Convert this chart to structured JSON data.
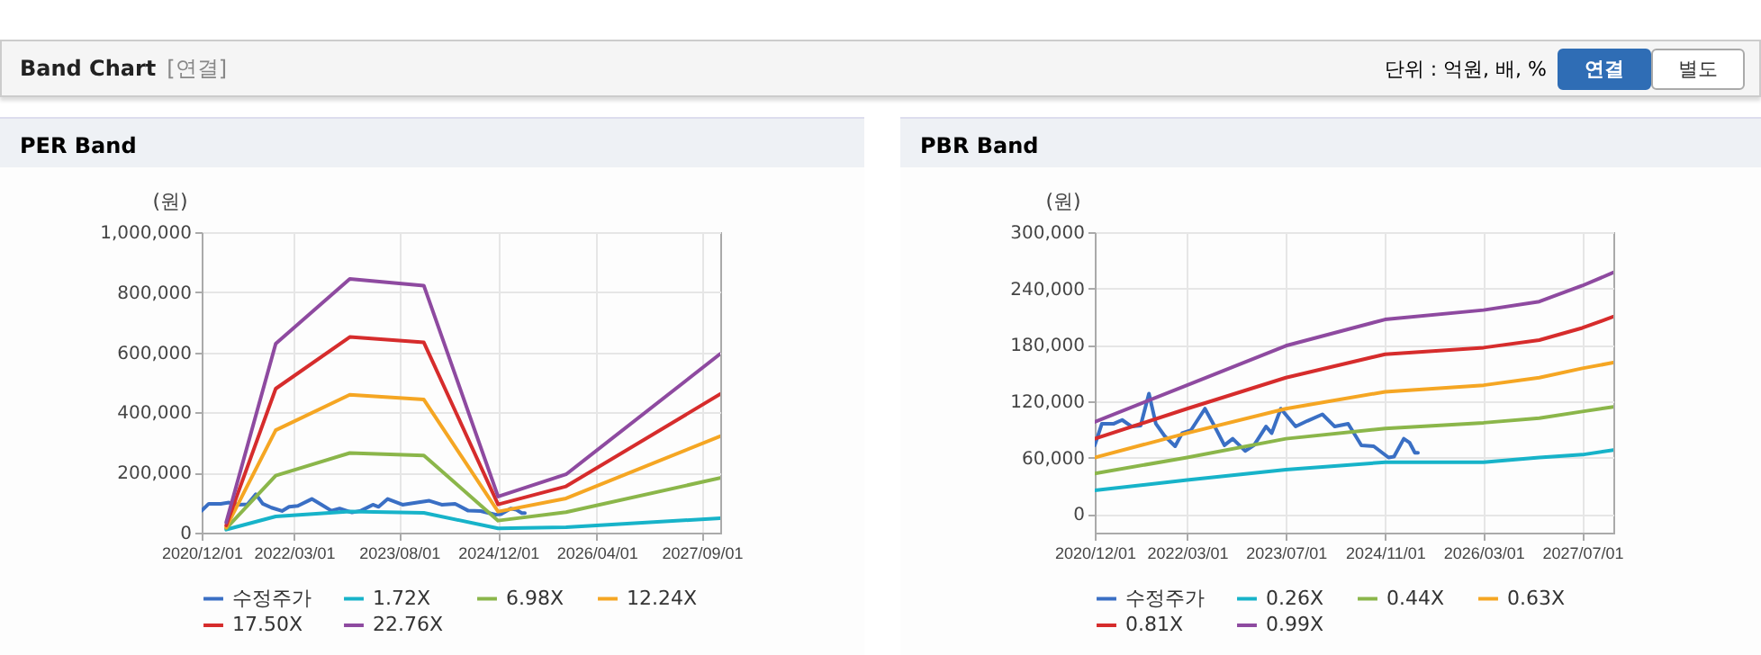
{
  "chart_data": [
    {
      "type": "other",
      "title": "Band Chart",
      "annotations": [
        "[연결]",
        "단위 : 억원, 배, %",
        "연결",
        "별도"
      ]
    },
    {
      "type": "line",
      "title": "PER Band",
      "ylabel": "(원)",
      "xlim": [
        "2020-12-01",
        "2027-12-01"
      ],
      "xticks": [
        {
          "value": "2020-12-01",
          "label": "2020/12/01"
        },
        {
          "value": "2022-03-01",
          "label": "2022/03/01"
        },
        {
          "value": "2023-08-01",
          "label": "2023/08/01"
        },
        {
          "value": "2024-12-01",
          "label": "2024/12/01"
        },
        {
          "value": "2026-04-01",
          "label": "2026/04/01"
        },
        {
          "value": "2027-09-01",
          "label": "2027/09/01"
        }
      ],
      "ylim": [
        0,
        1000000
      ],
      "yticks": [
        0,
        {
          "value": 200000,
          "label": "200,000"
        },
        {
          "value": 400000,
          "label": "400,000"
        },
        {
          "value": 600000,
          "label": "600,000"
        },
        {
          "value": 800000,
          "label": "800,000"
        },
        {
          "value": 1000000,
          "label": "1,000,000"
        }
      ],
      "grid": true,
      "legend": "bottom",
      "series": [
        {
          "name": "수정주가",
          "color": "#3a6fc4",
          "x": [
            "2020-12-01",
            "2021-01-05",
            "2021-03-05",
            "2021-04-15",
            "2021-06-01",
            "2021-07-15",
            "2021-08-25",
            "2021-09-28",
            "2021-11-10",
            "2022-01-01",
            "2022-02-05",
            "2022-03-20",
            "2022-05-28",
            "2022-07-15",
            "2022-09-01",
            "2022-10-12",
            "2022-12-12",
            "2023-01-25",
            "2023-03-25",
            "2023-04-22",
            "2023-06-06",
            "2023-08-18",
            "2023-10-15",
            "2023-12-28",
            "2024-02-27",
            "2024-05-03",
            "2024-07-07",
            "2024-09-06",
            "2024-11-18",
            "2024-12-15",
            "2025-02-01",
            "2025-03-01",
            "2025-03-28",
            "2025-04-12"
          ],
          "values": [
            73000,
            96000,
            96000,
            100000,
            93000,
            94000,
            128000,
            96000,
            83000,
            72000,
            86000,
            89000,
            112000,
            93000,
            73000,
            80000,
            67000,
            73000,
            93000,
            86000,
            112000,
            93000,
            99000,
            106000,
            93000,
            96000,
            73000,
            72000,
            60000,
            61000,
            80000,
            76000,
            65000,
            65000
          ]
        },
        {
          "name": "1.72X",
          "color": "#17b3c9",
          "x": [
            "2021-04-01",
            "2021-12-01",
            "2022-12-01",
            "2023-12-01",
            "2024-12-01",
            "2025-11-01",
            "2027-12-01"
          ],
          "values": [
            10000,
            54000,
            70000,
            66000,
            14000,
            18000,
            48000
          ]
        },
        {
          "name": "6.98X",
          "color": "#8bb64a",
          "x": [
            "2021-04-01",
            "2021-12-01",
            "2022-12-01",
            "2023-12-01",
            "2024-12-01",
            "2025-11-01",
            "2027-12-01"
          ],
          "values": [
            14000,
            190000,
            265000,
            257000,
            40000,
            68000,
            182000
          ]
        },
        {
          "name": "12.24X",
          "color": "#f5a623",
          "x": [
            "2021-04-01",
            "2021-12-01",
            "2022-12-01",
            "2023-12-01",
            "2024-12-01",
            "2025-11-01",
            "2027-12-01"
          ],
          "values": [
            18000,
            341000,
            459000,
            443000,
            70000,
            114000,
            321000
          ]
        },
        {
          "name": "17.50X",
          "color": "#d62c2c",
          "x": [
            "2021-04-01",
            "2021-12-01",
            "2022-12-01",
            "2023-12-01",
            "2024-12-01",
            "2025-11-01",
            "2027-12-01"
          ],
          "values": [
            24000,
            479000,
            651000,
            633000,
            94000,
            154000,
            461000
          ]
        },
        {
          "name": "22.76X",
          "color": "#8e4aa0",
          "x": [
            "2021-04-01",
            "2021-12-01",
            "2022-12-01",
            "2023-12-01",
            "2024-12-01",
            "2025-11-01",
            "2027-12-01"
          ],
          "values": [
            34000,
            629000,
            844000,
            822000,
            120000,
            194000,
            595000
          ]
        }
      ]
    },
    {
      "type": "line",
      "title": "PBR Band",
      "ylabel": "(원)",
      "xlim": [
        "2020-12-01",
        "2027-12-01"
      ],
      "xticks": [
        {
          "value": "2020-12-01",
          "label": "2020/12/01"
        },
        {
          "value": "2022-03-01",
          "label": "2022/03/01"
        },
        {
          "value": "2023-07-01",
          "label": "2023/07/01"
        },
        {
          "value": "2024-11-01",
          "label": "2024/11/01"
        },
        {
          "value": "2026-03-01",
          "label": "2026/03/01"
        },
        {
          "value": "2027-07-01",
          "label": "2027/07/01"
        }
      ],
      "ylim": [
        -20000,
        300000
      ],
      "yticks": [
        0,
        {
          "value": 60000,
          "label": "60,000"
        },
        {
          "value": 120000,
          "label": "120,000"
        },
        {
          "value": 180000,
          "label": "180,000"
        },
        {
          "value": 240000,
          "label": "240,000"
        },
        {
          "value": 300000,
          "label": "300,000"
        }
      ],
      "grid": true,
      "legend": "bottom",
      "series": [
        {
          "name": "수정주가",
          "color": "#3a6fc4",
          "x": [
            "2020-12-01",
            "2021-01-05",
            "2021-03-05",
            "2021-04-15",
            "2021-06-01",
            "2021-07-15",
            "2021-08-25",
            "2021-09-28",
            "2021-11-10",
            "2022-01-01",
            "2022-02-05",
            "2022-03-20",
            "2022-05-28",
            "2022-07-15",
            "2022-09-01",
            "2022-10-12",
            "2022-12-12",
            "2023-01-25",
            "2023-03-25",
            "2023-04-22",
            "2023-06-06",
            "2023-08-18",
            "2023-10-15",
            "2023-12-28",
            "2024-02-27",
            "2024-05-03",
            "2024-07-07",
            "2024-09-06",
            "2024-11-18",
            "2024-12-15",
            "2025-02-01",
            "2025-03-01",
            "2025-03-28",
            "2025-04-12"
          ],
          "values": [
            73000,
            96000,
            96000,
            100000,
            93000,
            94000,
            128000,
            96000,
            83000,
            72000,
            86000,
            89000,
            112000,
            93000,
            73000,
            80000,
            67000,
            73000,
            93000,
            86000,
            112000,
            93000,
            99000,
            106000,
            93000,
            96000,
            73000,
            72000,
            60000,
            61000,
            80000,
            76000,
            65000,
            65000
          ]
        },
        {
          "name": "0.26X",
          "color": "#17b3c9",
          "x": [
            "2020-12-01",
            "2022-03-01",
            "2023-07-01",
            "2024-11-01",
            "2026-03-01",
            "2026-12-01",
            "2027-07-01",
            "2027-12-01"
          ],
          "values": [
            25000,
            36000,
            47000,
            55000,
            55000,
            60000,
            63000,
            68000
          ]
        },
        {
          "name": "0.44X",
          "color": "#8bb64a",
          "x": [
            "2020-12-01",
            "2022-03-01",
            "2023-07-01",
            "2024-11-01",
            "2026-03-01",
            "2026-12-01",
            "2027-07-01",
            "2027-12-01"
          ],
          "values": [
            43000,
            60000,
            80000,
            91000,
            97000,
            102000,
            109000,
            114000
          ]
        },
        {
          "name": "0.63X",
          "color": "#f5a623",
          "x": [
            "2020-12-01",
            "2022-03-01",
            "2023-07-01",
            "2024-11-01",
            "2026-03-01",
            "2026-12-01",
            "2027-07-01",
            "2027-12-01"
          ],
          "values": [
            60000,
            86000,
            112000,
            130000,
            137000,
            145000,
            155000,
            161000
          ]
        },
        {
          "name": "0.81X",
          "color": "#d62c2c",
          "x": [
            "2020-12-01",
            "2022-03-01",
            "2023-07-01",
            "2024-11-01",
            "2026-03-01",
            "2026-12-01",
            "2027-07-01",
            "2027-12-01"
          ],
          "values": [
            80000,
            112000,
            145000,
            170000,
            177000,
            185000,
            198000,
            210000
          ]
        },
        {
          "name": "0.99X",
          "color": "#8e4aa0",
          "x": [
            "2020-12-01",
            "2022-03-01",
            "2023-07-01",
            "2024-11-01",
            "2026-03-01",
            "2026-12-01",
            "2027-07-01",
            "2027-12-01"
          ],
          "values": [
            98000,
            137000,
            179000,
            207000,
            217000,
            226000,
            243000,
            257000
          ]
        }
      ]
    }
  ]
}
